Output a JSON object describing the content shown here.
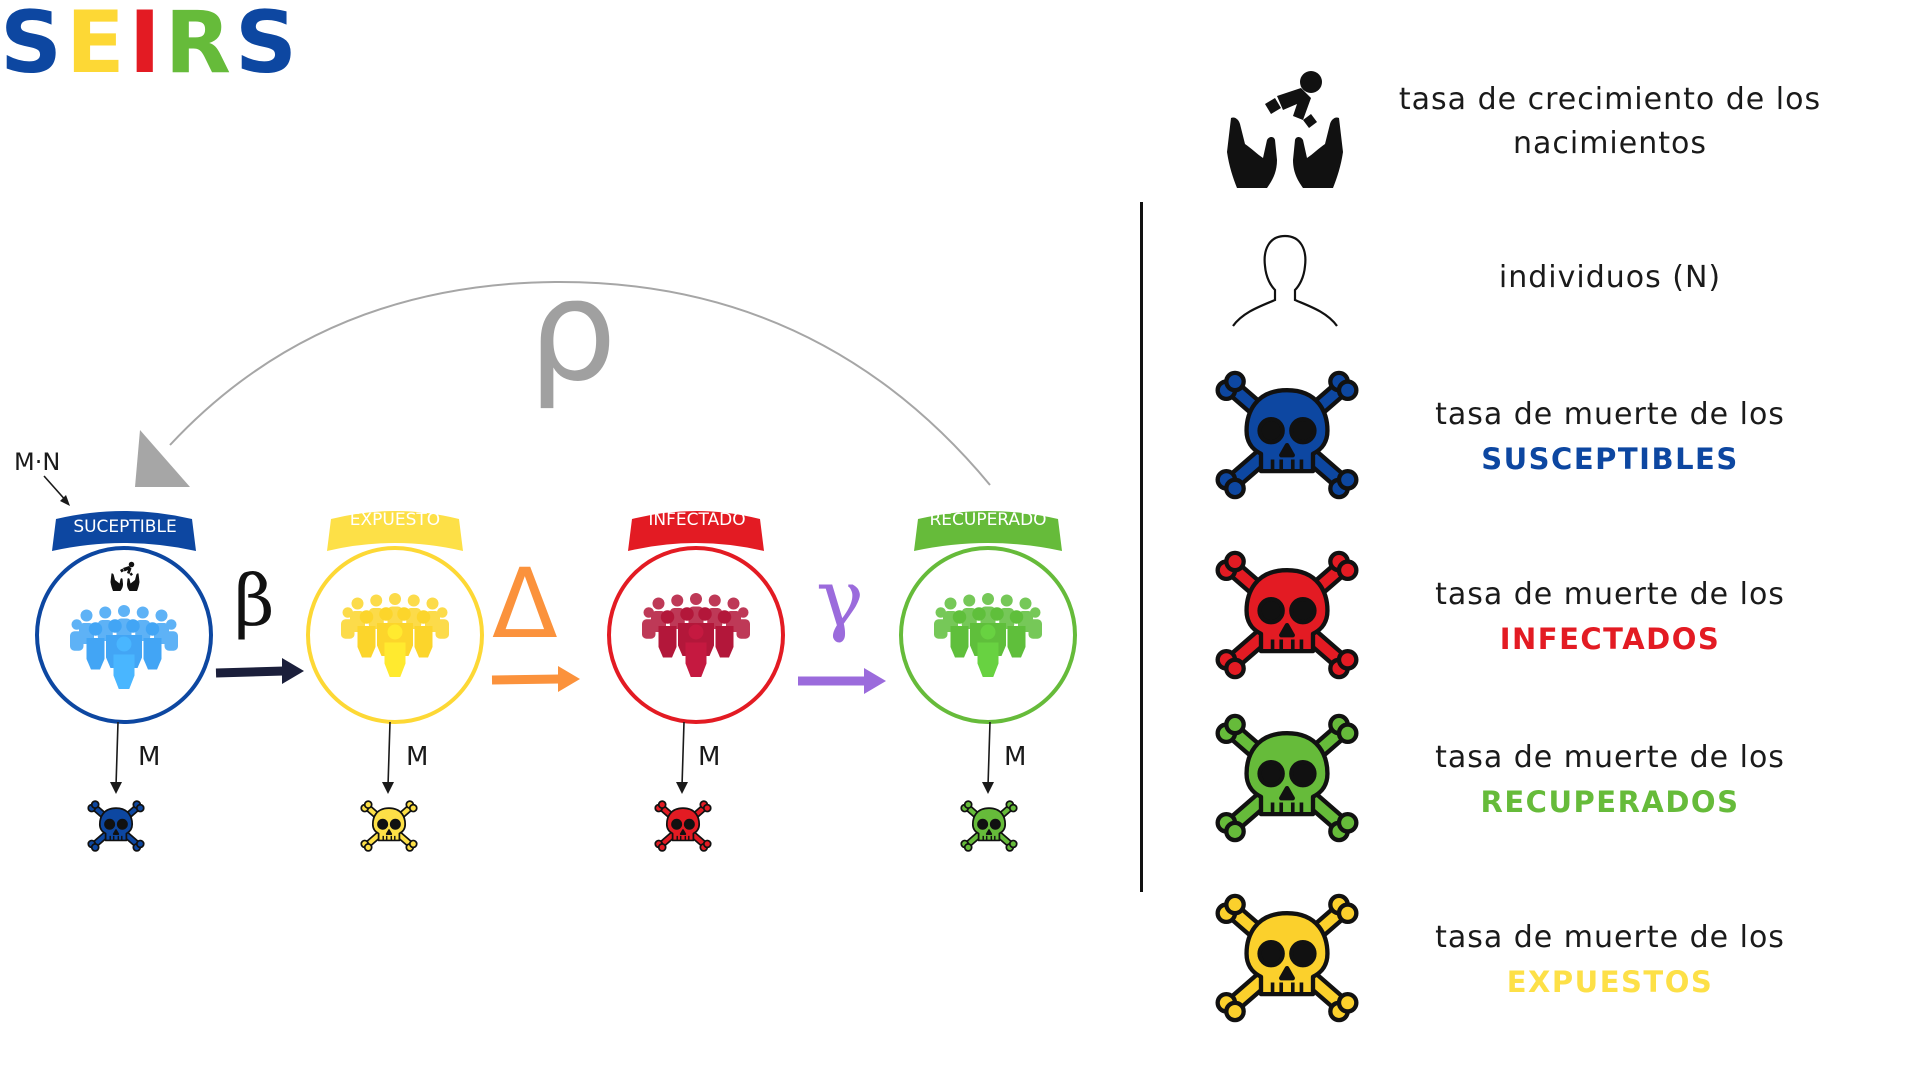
{
  "title": {
    "letters": [
      {
        "char": "S",
        "color": "#0d47a1"
      },
      {
        "char": "E",
        "color": "#fdd835"
      },
      {
        "char": "I",
        "color": "#e31b23"
      },
      {
        "char": "R",
        "color": "#66bb3a"
      },
      {
        "char": "S",
        "color": "#0d47a1"
      }
    ]
  },
  "diagram": {
    "inflow_label": "M·N",
    "return_label": "ρ",
    "compartments": [
      {
        "label": "SUCEPTIBLE",
        "color": "#0d47a1",
        "figure_color": "#42a5f5",
        "death_label": "M"
      },
      {
        "label": "EXPUESTO",
        "color": "#fdd835",
        "figure_color": "#fde047",
        "death_label": "M"
      },
      {
        "label": "INFECTADO",
        "color": "#e31b23",
        "figure_color": "#c8102e",
        "death_label": "M"
      },
      {
        "label": "RECUPERADO",
        "color": "#66bb3a",
        "figure_color": "#5fbf3b",
        "death_label": "M"
      }
    ],
    "transitions": [
      {
        "label": "β",
        "color": "#1b1f3b"
      },
      {
        "label": "Δ",
        "color": "#fb923c"
      },
      {
        "label": "γ",
        "color": "#9b6bdc"
      }
    ]
  },
  "legend": [
    {
      "icon": "baby-hands-icon",
      "line1": "tasa de crecimiento de los",
      "line2": "nacimientos",
      "color": "#1a1a1a"
    },
    {
      "icon": "person-outline-icon",
      "line1": "individuos (N)",
      "line2": "",
      "color": "#1a1a1a"
    },
    {
      "icon": "skull-crossbones-icon",
      "line1": "tasa de muerte de los",
      "line2": "SUSCEPTIBLES",
      "color": "#0d47a1"
    },
    {
      "icon": "skull-crossbones-icon",
      "line1": "tasa de muerte de los",
      "line2": "INFECTADOS",
      "color": "#e31b23"
    },
    {
      "icon": "skull-crossbones-icon",
      "line1": "tasa de muerte de los",
      "line2": "RECUPERADOS",
      "color": "#66bb3a"
    },
    {
      "icon": "skull-crossbones-icon",
      "line1": "tasa de muerte de los",
      "line2": "EXPUESTOS",
      "color": "#fdd835"
    }
  ]
}
